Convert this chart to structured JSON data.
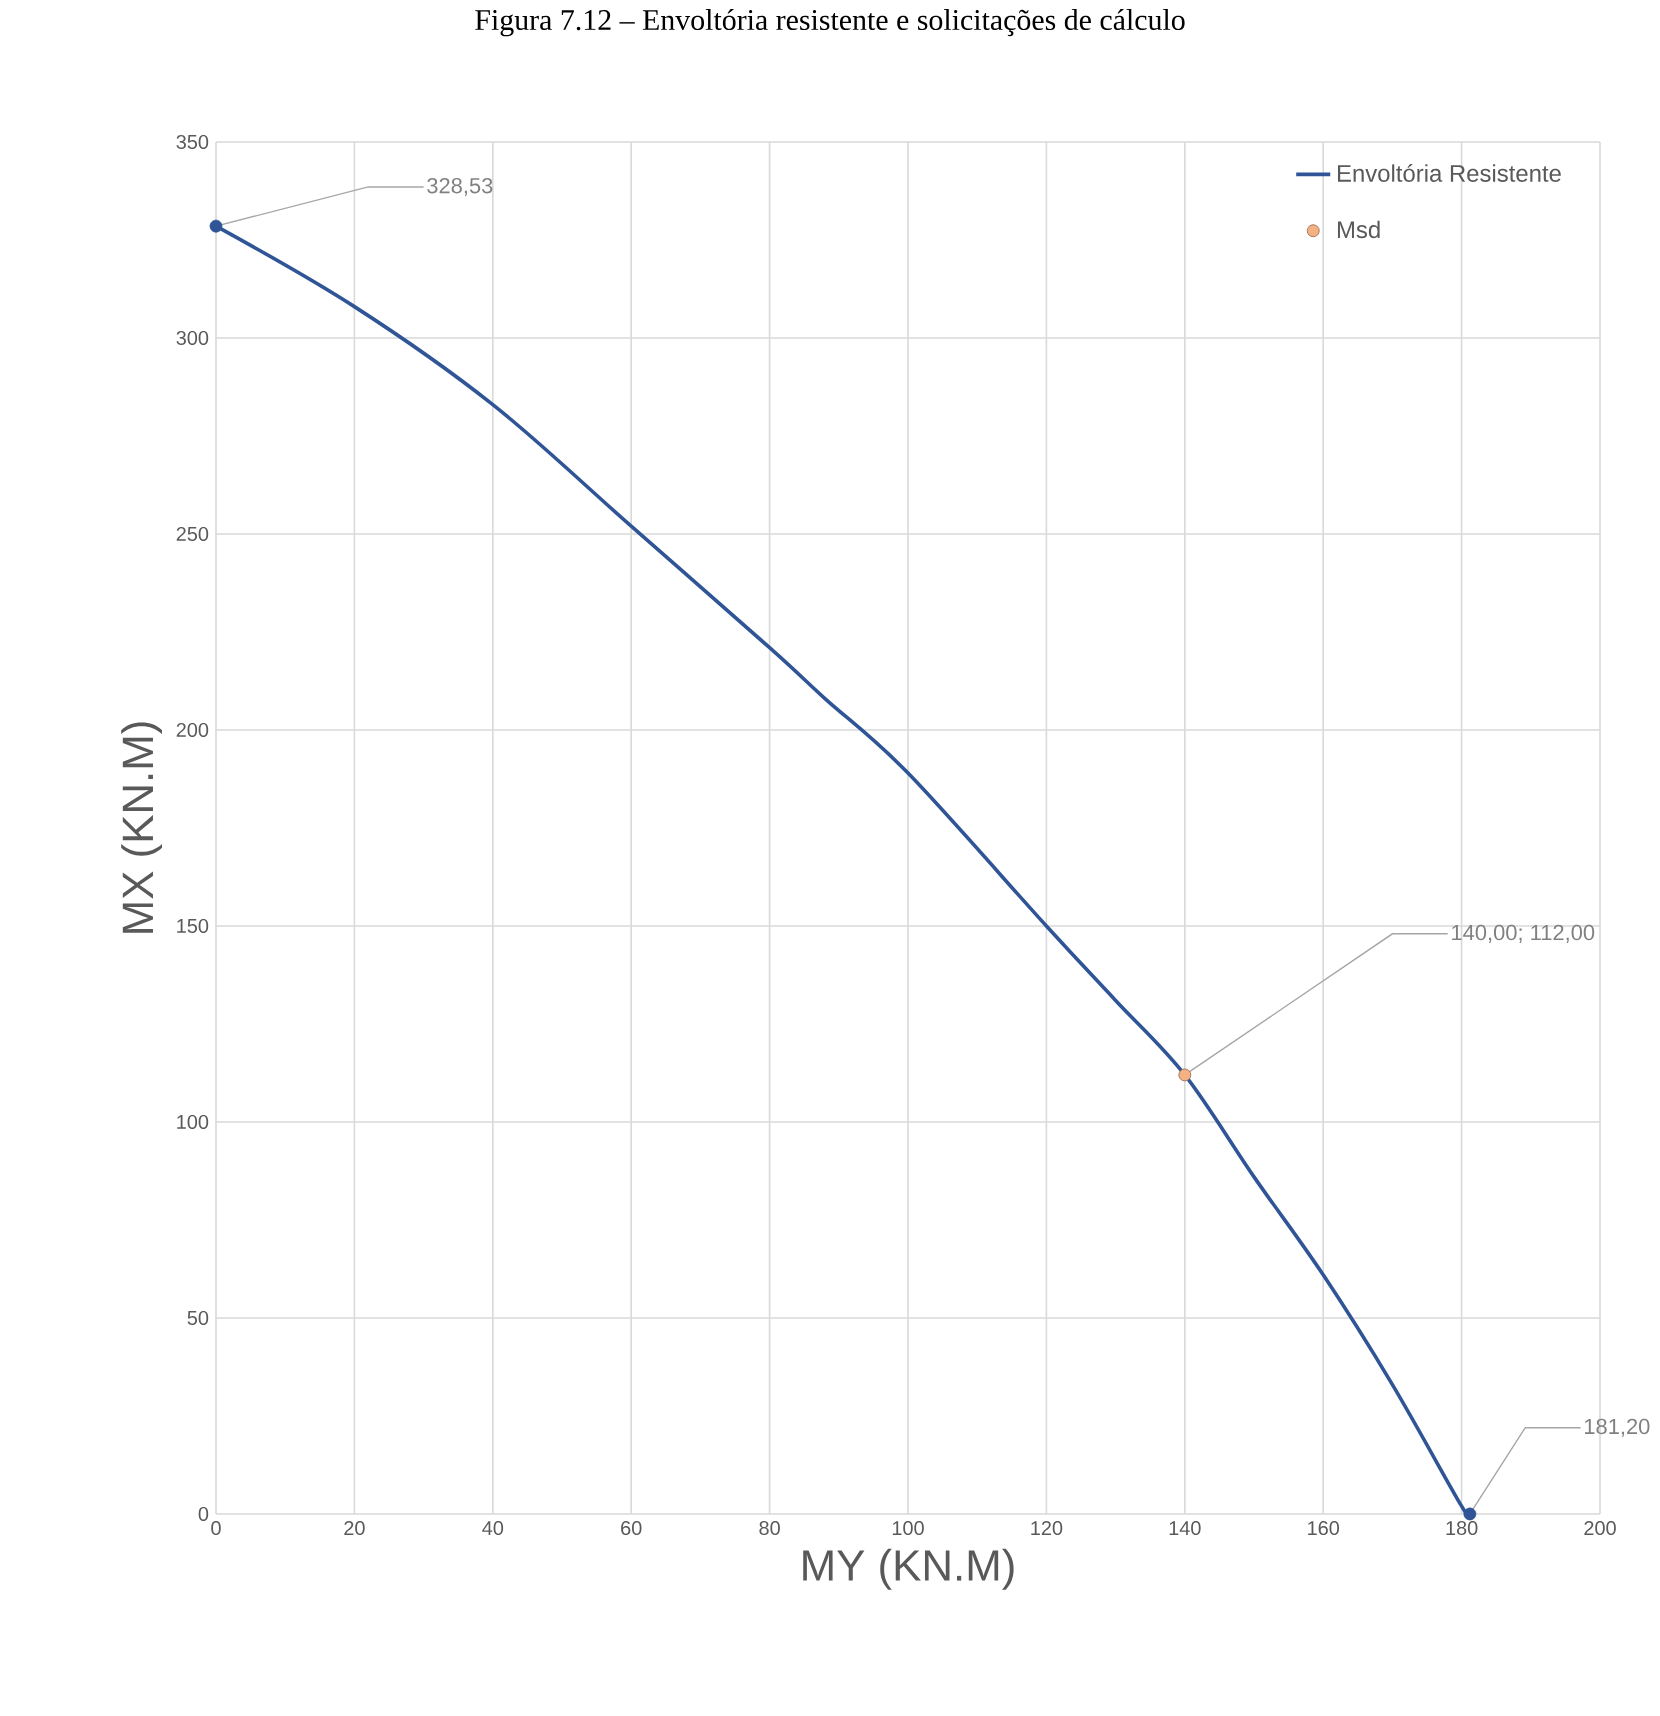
{
  "chart_data": {
    "type": "line",
    "title": "Figura 7.12 – Envoltória resistente e solicitações de cálculo",
    "xlabel": "MY (KN.M)",
    "ylabel": "MX (KN.M)",
    "xlim": [
      0,
      200
    ],
    "ylim": [
      0,
      350
    ],
    "xticks": [
      0,
      20,
      40,
      60,
      80,
      100,
      120,
      140,
      160,
      180,
      200
    ],
    "yticks": [
      0,
      50,
      100,
      150,
      200,
      250,
      300,
      350
    ],
    "grid": true,
    "legend": "top right",
    "marker": "none",
    "line_style": "solid",
    "series": [
      {
        "name": "Envoltória Resistente",
        "color": "#2f5597",
        "x": [
          0,
          20,
          40,
          60,
          80,
          88,
          100,
          120,
          130,
          140,
          150,
          160,
          170,
          180,
          181.2
        ],
        "values": [
          328.53,
          308,
          283,
          252,
          221,
          208,
          189,
          150,
          131,
          112,
          86,
          61,
          33,
          2,
          0
        ]
      },
      {
        "name": "Msd",
        "type": "scatter",
        "marker": "circle",
        "color": "#f4b183",
        "x": [
          140
        ],
        "values": [
          112
        ]
      }
    ],
    "annotations": [
      {
        "text": "328,53",
        "x": 0,
        "y": 328.53
      },
      {
        "text": "181,20",
        "x": 181.2,
        "y": 0
      },
      {
        "text": "140,00; 112,00",
        "x": 140,
        "y": 112
      }
    ]
  }
}
